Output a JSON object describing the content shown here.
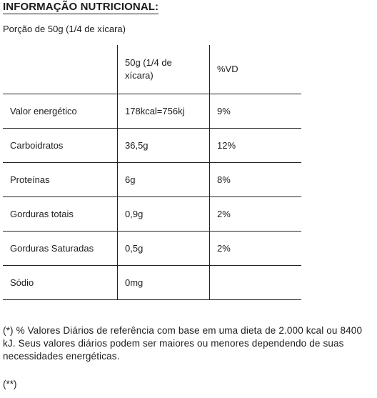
{
  "title": "INFORMAÇÃO NUTRICIONAL:",
  "portion": "Porção de 50g (1/4 de xícara)",
  "table": {
    "headers": [
      "",
      "50g (1/4 de xícara)",
      "%VD"
    ],
    "rows": [
      {
        "nutrient": "Valor energético",
        "amount": "178kcal=756kj",
        "dv": "9%"
      },
      {
        "nutrient": "Carboidratos",
        "amount": "36,5g",
        "dv": "12%"
      },
      {
        "nutrient": "Proteínas",
        "amount": "6g",
        "dv": "8%"
      },
      {
        "nutrient": "Gorduras totais",
        "amount": "0,9g",
        "dv": "2%"
      },
      {
        "nutrient": "Gorduras Saturadas",
        "amount": "0,5g",
        "dv": "2%"
      },
      {
        "nutrient": "Sódio",
        "amount": "0mg",
        "dv": ""
      }
    ]
  },
  "footnote": "(*) % Valores Diários de referência com base em uma dieta de 2.000 kcal ou 8400 kJ. Seus valores diários podem ser maiores ou menores dependendo de suas necessidades energéticas.",
  "footnote2": "(**)"
}
